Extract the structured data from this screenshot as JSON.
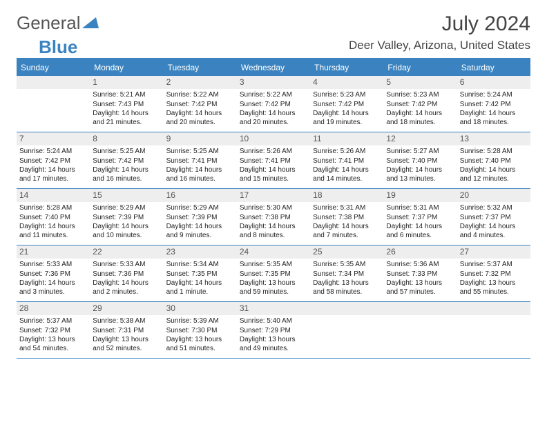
{
  "logo": {
    "text1": "General",
    "text2": "Blue"
  },
  "title": "July 2024",
  "location": "Deer Valley, Arizona, United States",
  "theme": {
    "accent": "#3b83c0",
    "daynum_bg": "#eeeeee",
    "text": "#333333"
  },
  "day_names": [
    "Sunday",
    "Monday",
    "Tuesday",
    "Wednesday",
    "Thursday",
    "Friday",
    "Saturday"
  ],
  "start_offset": 1,
  "days": [
    {
      "n": 1,
      "sunrise": "5:21 AM",
      "sunset": "7:43 PM",
      "daylight": "14 hours and 21 minutes."
    },
    {
      "n": 2,
      "sunrise": "5:22 AM",
      "sunset": "7:42 PM",
      "daylight": "14 hours and 20 minutes."
    },
    {
      "n": 3,
      "sunrise": "5:22 AM",
      "sunset": "7:42 PM",
      "daylight": "14 hours and 20 minutes."
    },
    {
      "n": 4,
      "sunrise": "5:23 AM",
      "sunset": "7:42 PM",
      "daylight": "14 hours and 19 minutes."
    },
    {
      "n": 5,
      "sunrise": "5:23 AM",
      "sunset": "7:42 PM",
      "daylight": "14 hours and 18 minutes."
    },
    {
      "n": 6,
      "sunrise": "5:24 AM",
      "sunset": "7:42 PM",
      "daylight": "14 hours and 18 minutes."
    },
    {
      "n": 7,
      "sunrise": "5:24 AM",
      "sunset": "7:42 PM",
      "daylight": "14 hours and 17 minutes."
    },
    {
      "n": 8,
      "sunrise": "5:25 AM",
      "sunset": "7:42 PM",
      "daylight": "14 hours and 16 minutes."
    },
    {
      "n": 9,
      "sunrise": "5:25 AM",
      "sunset": "7:41 PM",
      "daylight": "14 hours and 16 minutes."
    },
    {
      "n": 10,
      "sunrise": "5:26 AM",
      "sunset": "7:41 PM",
      "daylight": "14 hours and 15 minutes."
    },
    {
      "n": 11,
      "sunrise": "5:26 AM",
      "sunset": "7:41 PM",
      "daylight": "14 hours and 14 minutes."
    },
    {
      "n": 12,
      "sunrise": "5:27 AM",
      "sunset": "7:40 PM",
      "daylight": "14 hours and 13 minutes."
    },
    {
      "n": 13,
      "sunrise": "5:28 AM",
      "sunset": "7:40 PM",
      "daylight": "14 hours and 12 minutes."
    },
    {
      "n": 14,
      "sunrise": "5:28 AM",
      "sunset": "7:40 PM",
      "daylight": "14 hours and 11 minutes."
    },
    {
      "n": 15,
      "sunrise": "5:29 AM",
      "sunset": "7:39 PM",
      "daylight": "14 hours and 10 minutes."
    },
    {
      "n": 16,
      "sunrise": "5:29 AM",
      "sunset": "7:39 PM",
      "daylight": "14 hours and 9 minutes."
    },
    {
      "n": 17,
      "sunrise": "5:30 AM",
      "sunset": "7:38 PM",
      "daylight": "14 hours and 8 minutes."
    },
    {
      "n": 18,
      "sunrise": "5:31 AM",
      "sunset": "7:38 PM",
      "daylight": "14 hours and 7 minutes."
    },
    {
      "n": 19,
      "sunrise": "5:31 AM",
      "sunset": "7:37 PM",
      "daylight": "14 hours and 6 minutes."
    },
    {
      "n": 20,
      "sunrise": "5:32 AM",
      "sunset": "7:37 PM",
      "daylight": "14 hours and 4 minutes."
    },
    {
      "n": 21,
      "sunrise": "5:33 AM",
      "sunset": "7:36 PM",
      "daylight": "14 hours and 3 minutes."
    },
    {
      "n": 22,
      "sunrise": "5:33 AM",
      "sunset": "7:36 PM",
      "daylight": "14 hours and 2 minutes."
    },
    {
      "n": 23,
      "sunrise": "5:34 AM",
      "sunset": "7:35 PM",
      "daylight": "14 hours and 1 minute."
    },
    {
      "n": 24,
      "sunrise": "5:35 AM",
      "sunset": "7:35 PM",
      "daylight": "13 hours and 59 minutes."
    },
    {
      "n": 25,
      "sunrise": "5:35 AM",
      "sunset": "7:34 PM",
      "daylight": "13 hours and 58 minutes."
    },
    {
      "n": 26,
      "sunrise": "5:36 AM",
      "sunset": "7:33 PM",
      "daylight": "13 hours and 57 minutes."
    },
    {
      "n": 27,
      "sunrise": "5:37 AM",
      "sunset": "7:32 PM",
      "daylight": "13 hours and 55 minutes."
    },
    {
      "n": 28,
      "sunrise": "5:37 AM",
      "sunset": "7:32 PM",
      "daylight": "13 hours and 54 minutes."
    },
    {
      "n": 29,
      "sunrise": "5:38 AM",
      "sunset": "7:31 PM",
      "daylight": "13 hours and 52 minutes."
    },
    {
      "n": 30,
      "sunrise": "5:39 AM",
      "sunset": "7:30 PM",
      "daylight": "13 hours and 51 minutes."
    },
    {
      "n": 31,
      "sunrise": "5:40 AM",
      "sunset": "7:29 PM",
      "daylight": "13 hours and 49 minutes."
    }
  ],
  "labels": {
    "sunrise": "Sunrise:",
    "sunset": "Sunset:",
    "daylight": "Daylight:"
  }
}
